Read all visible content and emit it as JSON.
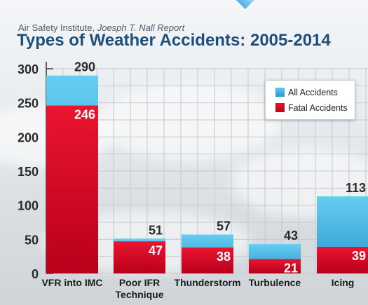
{
  "header": {
    "source_plain": "Air Safety Institute, ",
    "source_italic": "Joesph T. Nall Report",
    "title": "Types of Weather Accidents: 2005-2014"
  },
  "legend": {
    "all_label": "All Accidents",
    "fatal_label": "Fatal Accidents",
    "position": "top-right"
  },
  "colors": {
    "all": "#2fa3d8",
    "fatal": "#d4071f",
    "title": "#1e4f7a"
  },
  "chart_data": {
    "type": "bar",
    "title": "Types of Weather Accidents: 2005-2014",
    "categories": [
      [
        "VFR into IMC"
      ],
      [
        "Poor IFR",
        "Technique"
      ],
      [
        "Thunderstorm"
      ],
      [
        "Turbulence"
      ],
      [
        "Icing"
      ]
    ],
    "series": [
      {
        "name": "All Accidents",
        "values": [
          290,
          51,
          57,
          43,
          113
        ]
      },
      {
        "name": "Fatal Accidents",
        "values": [
          246,
          47,
          38,
          21,
          39
        ]
      }
    ],
    "ylim": [
      0,
      300
    ],
    "yticks": [
      0,
      50,
      100,
      150,
      200,
      250,
      300
    ],
    "grid": true
  }
}
